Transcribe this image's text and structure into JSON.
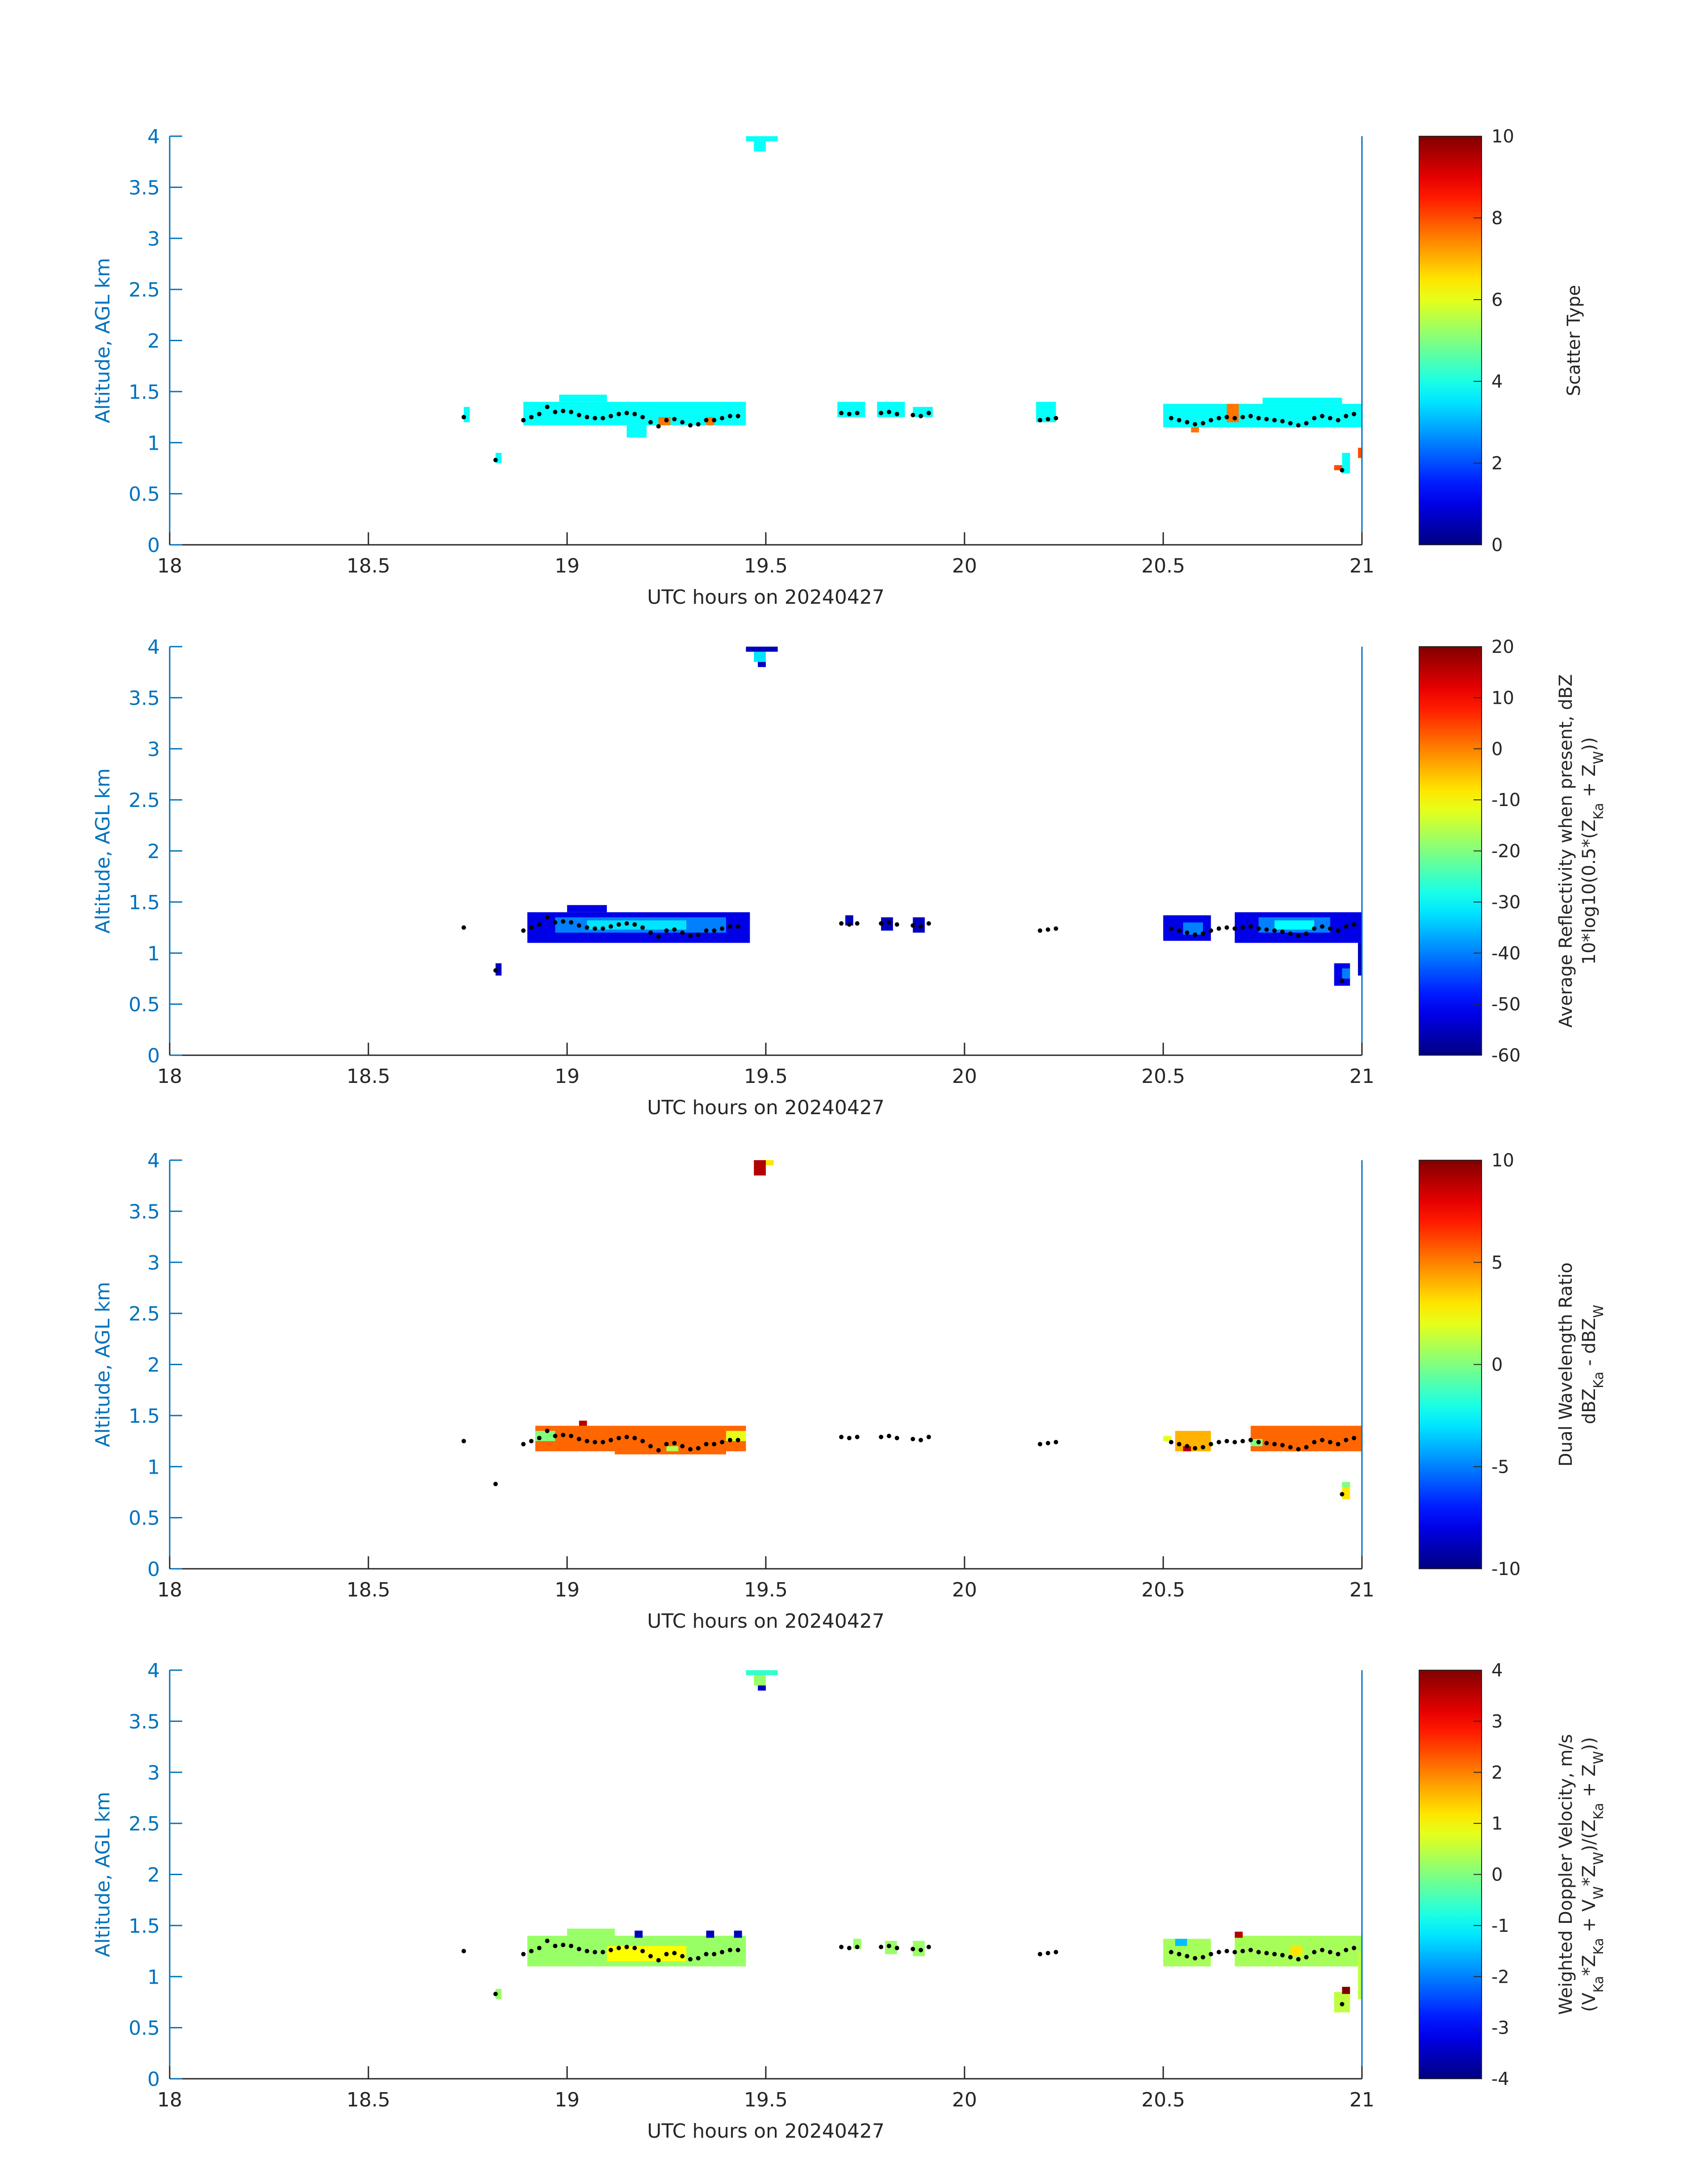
{
  "figure": {
    "background": "#ffffff"
  },
  "chart_data": [
    {
      "type": "heatmap",
      "title": "",
      "xlabel": "UTC hours on 20240427",
      "ylabel": "Altitude, AGL km",
      "xlim": [
        18,
        21
      ],
      "ylim": [
        0,
        4
      ],
      "xticks": [
        "18",
        "18.5",
        "19",
        "19.5",
        "20",
        "20.5",
        "21"
      ],
      "yticks": [
        "0",
        "0.5",
        "1",
        "1.5",
        "2",
        "2.5",
        "3",
        "3.5",
        "4"
      ],
      "colorbar": {
        "label_lines": [
          "Scatter Type"
        ],
        "min": 0,
        "max": 10,
        "ticks": [
          "0",
          "2",
          "4",
          "6",
          "8",
          "10"
        ]
      },
      "cells": [
        {
          "x0": 19.45,
          "x1": 19.53,
          "y0": 3.95,
          "y1": 4.0,
          "value": 3.8
        },
        {
          "x0": 19.47,
          "x1": 19.5,
          "y0": 3.85,
          "y1": 3.95,
          "value": 3.8
        },
        {
          "x0": 18.74,
          "x1": 18.755,
          "y0": 1.2,
          "y1": 1.35,
          "value": 3.8
        },
        {
          "x0": 18.82,
          "x1": 18.835,
          "y0": 0.8,
          "y1": 0.9,
          "value": 3.8
        },
        {
          "x0": 18.89,
          "x1": 19.45,
          "y0": 1.17,
          "y1": 1.4,
          "value": 3.8
        },
        {
          "x0": 18.98,
          "x1": 19.1,
          "y0": 1.4,
          "y1": 1.47,
          "value": 3.8
        },
        {
          "x0": 19.15,
          "x1": 19.2,
          "y0": 1.05,
          "y1": 1.17,
          "value": 3.8
        },
        {
          "x0": 19.23,
          "x1": 19.26,
          "y0": 1.17,
          "y1": 1.25,
          "value": 7.6
        },
        {
          "x0": 19.35,
          "x1": 19.37,
          "y0": 1.17,
          "y1": 1.25,
          "value": 7.6
        },
        {
          "x0": 19.68,
          "x1": 19.75,
          "y0": 1.25,
          "y1": 1.4,
          "value": 3.8
        },
        {
          "x0": 19.78,
          "x1": 19.85,
          "y0": 1.25,
          "y1": 1.4,
          "value": 3.8
        },
        {
          "x0": 19.87,
          "x1": 19.92,
          "y0": 1.25,
          "y1": 1.35,
          "value": 3.8
        },
        {
          "x0": 20.18,
          "x1": 20.23,
          "y0": 1.2,
          "y1": 1.4,
          "value": 3.8
        },
        {
          "x0": 20.5,
          "x1": 21.0,
          "y0": 1.15,
          "y1": 1.38,
          "value": 3.8
        },
        {
          "x0": 20.75,
          "x1": 20.95,
          "y0": 1.38,
          "y1": 1.44,
          "value": 3.8
        },
        {
          "x0": 20.66,
          "x1": 20.69,
          "y0": 1.2,
          "y1": 1.38,
          "value": 7.6
        },
        {
          "x0": 20.57,
          "x1": 20.59,
          "y0": 1.1,
          "y1": 1.15,
          "value": 7.6
        },
        {
          "x0": 20.95,
          "x1": 20.97,
          "y0": 0.7,
          "y1": 0.9,
          "value": 3.8
        },
        {
          "x0": 20.93,
          "x1": 20.95,
          "y0": 0.73,
          "y1": 0.78,
          "value": 8.0
        },
        {
          "x0": 20.99,
          "x1": 21.0,
          "y0": 0.85,
          "y1": 0.95,
          "value": 8.0
        }
      ]
    },
    {
      "type": "heatmap",
      "title": "",
      "xlabel": "UTC hours on 20240427",
      "ylabel": "Altitude, AGL km",
      "xlim": [
        18,
        21
      ],
      "ylim": [
        0,
        4
      ],
      "xticks": [
        "18",
        "18.5",
        "19",
        "19.5",
        "20",
        "20.5",
        "21"
      ],
      "yticks": [
        "0",
        "0.5",
        "1",
        "1.5",
        "2",
        "2.5",
        "3",
        "3.5",
        "4"
      ],
      "colorbar": {
        "label_lines": [
          "Average Reflectivity when present, dBZ",
          "10*log10(0.5*(Z",
          "Ka",
          " + Z",
          "W",
          "))"
        ],
        "min": -60,
        "max": 20,
        "ticks": [
          "-60",
          "-50",
          "-40",
          "-30",
          "-20",
          "-10",
          "0",
          "10",
          "20"
        ]
      },
      "cells": [
        {
          "x0": 19.45,
          "x1": 19.53,
          "y0": 3.95,
          "y1": 4.0,
          "value": -55
        },
        {
          "x0": 19.47,
          "x1": 19.5,
          "y0": 3.85,
          "y1": 3.95,
          "value": -32
        },
        {
          "x0": 19.48,
          "x1": 19.5,
          "y0": 3.8,
          "y1": 3.85,
          "value": -55
        },
        {
          "x0": 18.82,
          "x1": 18.835,
          "y0": 0.78,
          "y1": 0.9,
          "value": -55
        },
        {
          "x0": 18.9,
          "x1": 19.46,
          "y0": 1.1,
          "y1": 1.4,
          "value": -52
        },
        {
          "x0": 19.0,
          "x1": 19.1,
          "y0": 1.4,
          "y1": 1.47,
          "value": -52
        },
        {
          "x0": 18.97,
          "x1": 19.4,
          "y0": 1.2,
          "y1": 1.35,
          "value": -40
        },
        {
          "x0": 19.05,
          "x1": 19.3,
          "y0": 1.23,
          "y1": 1.32,
          "value": -32
        },
        {
          "x0": 19.7,
          "x1": 19.72,
          "y0": 1.27,
          "y1": 1.37,
          "value": -55
        },
        {
          "x0": 19.79,
          "x1": 19.82,
          "y0": 1.22,
          "y1": 1.35,
          "value": -55
        },
        {
          "x0": 19.87,
          "x1": 19.9,
          "y0": 1.2,
          "y1": 1.35,
          "value": -55
        },
        {
          "x0": 20.5,
          "x1": 20.62,
          "y0": 1.12,
          "y1": 1.37,
          "value": -52
        },
        {
          "x0": 20.55,
          "x1": 20.6,
          "y0": 1.18,
          "y1": 1.3,
          "value": -40
        },
        {
          "x0": 20.68,
          "x1": 21.0,
          "y0": 1.1,
          "y1": 1.4,
          "value": -52
        },
        {
          "x0": 20.74,
          "x1": 20.92,
          "y0": 1.2,
          "y1": 1.35,
          "value": -40
        },
        {
          "x0": 20.78,
          "x1": 20.88,
          "y0": 1.23,
          "y1": 1.32,
          "value": -30
        },
        {
          "x0": 20.93,
          "x1": 20.97,
          "y0": 0.68,
          "y1": 0.9,
          "value": -52
        },
        {
          "x0": 20.95,
          "x1": 20.97,
          "y0": 0.75,
          "y1": 0.85,
          "value": -40
        },
        {
          "x0": 20.99,
          "x1": 21.0,
          "y0": 0.78,
          "y1": 1.1,
          "value": -55
        }
      ]
    },
    {
      "type": "heatmap",
      "title": "",
      "xlabel": "UTC hours on 20240427",
      "ylabel": "Altitude, AGL km",
      "xlim": [
        18,
        21
      ],
      "ylim": [
        0,
        4
      ],
      "xticks": [
        "18",
        "18.5",
        "19",
        "19.5",
        "20",
        "20.5",
        "21"
      ],
      "yticks": [
        "0",
        "0.5",
        "1",
        "1.5",
        "2",
        "2.5",
        "3",
        "3.5",
        "4"
      ],
      "colorbar": {
        "label_lines": [
          "Dual Wavelength Ratio",
          "dBZ",
          "Ka",
          " - dBZ",
          "W",
          ""
        ],
        "min": -10,
        "max": 10,
        "ticks": [
          "-10",
          "-5",
          "0",
          "5",
          "10"
        ]
      },
      "cells": [
        {
          "x0": 19.47,
          "x1": 19.5,
          "y0": 3.85,
          "y1": 4.0,
          "value": 9
        },
        {
          "x0": 19.5,
          "x1": 19.52,
          "y0": 3.95,
          "y1": 4.0,
          "value": 3
        },
        {
          "x0": 18.92,
          "x1": 19.45,
          "y0": 1.15,
          "y1": 1.4,
          "value": 5.5
        },
        {
          "x0": 18.92,
          "x1": 18.97,
          "y0": 1.25,
          "y1": 1.35,
          "value": 0
        },
        {
          "x0": 19.12,
          "x1": 19.4,
          "y0": 1.12,
          "y1": 1.32,
          "value": 5.5
        },
        {
          "x0": 19.25,
          "x1": 19.28,
          "y0": 1.15,
          "y1": 1.2,
          "value": 1
        },
        {
          "x0": 19.4,
          "x1": 19.45,
          "y0": 1.25,
          "y1": 1.35,
          "value": 2
        },
        {
          "x0": 19.03,
          "x1": 19.05,
          "y0": 1.4,
          "y1": 1.45,
          "value": 9
        },
        {
          "x0": 20.5,
          "x1": 20.52,
          "y0": 1.25,
          "y1": 1.3,
          "value": 2
        },
        {
          "x0": 20.53,
          "x1": 20.62,
          "y0": 1.15,
          "y1": 1.35,
          "value": 4
        },
        {
          "x0": 20.55,
          "x1": 20.57,
          "y0": 1.15,
          "y1": 1.2,
          "value": 9
        },
        {
          "x0": 20.72,
          "x1": 21.0,
          "y0": 1.15,
          "y1": 1.4,
          "value": 5.5
        },
        {
          "x0": 20.72,
          "x1": 20.75,
          "y0": 1.2,
          "y1": 1.27,
          "value": 0
        },
        {
          "x0": 20.95,
          "x1": 20.97,
          "y0": 0.68,
          "y1": 0.85,
          "value": 3
        },
        {
          "x0": 20.95,
          "x1": 20.97,
          "y0": 0.8,
          "y1": 0.85,
          "value": 0
        }
      ]
    },
    {
      "type": "heatmap",
      "title": "",
      "xlabel": "UTC hours on 20240427",
      "ylabel": "Altitude, AGL km",
      "xlim": [
        18,
        21
      ],
      "ylim": [
        0,
        4
      ],
      "xticks": [
        "18",
        "18.5",
        "19",
        "19.5",
        "20",
        "20.5",
        "21"
      ],
      "yticks": [
        "0",
        "0.5",
        "1",
        "1.5",
        "2",
        "2.5",
        "3",
        "3.5",
        "4"
      ],
      "colorbar": {
        "label_lines": [
          "Weighted Doppler Velocity, m/s",
          "(V",
          "Ka",
          "*Z",
          "Ka",
          " + V",
          "W",
          "*Z",
          "W",
          ")/(Z",
          "Ka",
          " + Z",
          "W",
          "))"
        ],
        "min": -4,
        "max": 4,
        "ticks": [
          "-4",
          "-3",
          "-2",
          "-1",
          "0",
          "1",
          "2",
          "3",
          "4"
        ]
      },
      "cells": [
        {
          "x0": 19.45,
          "x1": 19.53,
          "y0": 3.95,
          "y1": 4.0,
          "value": -0.6
        },
        {
          "x0": 19.47,
          "x1": 19.5,
          "y0": 3.85,
          "y1": 3.95,
          "value": 0.2
        },
        {
          "x0": 19.48,
          "x1": 19.5,
          "y0": 3.8,
          "y1": 3.85,
          "value": -3.5
        },
        {
          "x0": 18.82,
          "x1": 18.835,
          "y0": 0.78,
          "y1": 0.88,
          "value": 0.2
        },
        {
          "x0": 18.9,
          "x1": 19.45,
          "y0": 1.1,
          "y1": 1.4,
          "value": 0.2
        },
        {
          "x0": 19.0,
          "x1": 19.12,
          "y0": 1.4,
          "y1": 1.47,
          "value": 0.2
        },
        {
          "x0": 19.1,
          "x1": 19.3,
          "y0": 1.15,
          "y1": 1.3,
          "value": 1.0
        },
        {
          "x0": 19.17,
          "x1": 19.19,
          "y0": 1.38,
          "y1": 1.45,
          "value": -3.5
        },
        {
          "x0": 19.35,
          "x1": 19.37,
          "y0": 1.38,
          "y1": 1.45,
          "value": -3.5
        },
        {
          "x0": 19.42,
          "x1": 19.44,
          "y0": 1.38,
          "y1": 1.45,
          "value": -3.5
        },
        {
          "x0": 19.72,
          "x1": 19.74,
          "y0": 1.27,
          "y1": 1.37,
          "value": 0.2
        },
        {
          "x0": 19.8,
          "x1": 19.83,
          "y0": 1.22,
          "y1": 1.35,
          "value": 0.2
        },
        {
          "x0": 19.87,
          "x1": 19.9,
          "y0": 1.2,
          "y1": 1.35,
          "value": 0.2
        },
        {
          "x0": 20.5,
          "x1": 20.62,
          "y0": 1.1,
          "y1": 1.37,
          "value": 0.3
        },
        {
          "x0": 20.53,
          "x1": 20.56,
          "y0": 1.3,
          "y1": 1.37,
          "value": -1.5
        },
        {
          "x0": 20.68,
          "x1": 21.0,
          "y0": 1.1,
          "y1": 1.4,
          "value": 0.3
        },
        {
          "x0": 20.68,
          "x1": 20.7,
          "y0": 1.38,
          "y1": 1.44,
          "value": 3.6
        },
        {
          "x0": 20.82,
          "x1": 20.85,
          "y0": 1.2,
          "y1": 1.3,
          "value": 1.2
        },
        {
          "x0": 20.93,
          "x1": 20.97,
          "y0": 0.65,
          "y1": 0.85,
          "value": 0.5
        },
        {
          "x0": 20.95,
          "x1": 20.97,
          "y0": 0.83,
          "y1": 0.9,
          "value": 4
        },
        {
          "x0": 20.99,
          "x1": 21.0,
          "y0": 0.78,
          "y1": 1.25,
          "value": 0.5
        }
      ]
    }
  ],
  "cloud_base_dots": {
    "color": "#000000",
    "points": [
      [
        18.74,
        1.25
      ],
      [
        18.82,
        0.83
      ],
      [
        18.89,
        1.22
      ],
      [
        18.91,
        1.25
      ],
      [
        18.93,
        1.28
      ],
      [
        18.95,
        1.35
      ],
      [
        18.97,
        1.3
      ],
      [
        18.99,
        1.31
      ],
      [
        19.01,
        1.3
      ],
      [
        19.03,
        1.27
      ],
      [
        19.05,
        1.25
      ],
      [
        19.07,
        1.24
      ],
      [
        19.09,
        1.24
      ],
      [
        19.11,
        1.26
      ],
      [
        19.13,
        1.28
      ],
      [
        19.15,
        1.29
      ],
      [
        19.17,
        1.28
      ],
      [
        19.19,
        1.25
      ],
      [
        19.21,
        1.2
      ],
      [
        19.23,
        1.16
      ],
      [
        19.25,
        1.22
      ],
      [
        19.27,
        1.23
      ],
      [
        19.29,
        1.2
      ],
      [
        19.31,
        1.17
      ],
      [
        19.33,
        1.18
      ],
      [
        19.35,
        1.22
      ],
      [
        19.37,
        1.22
      ],
      [
        19.39,
        1.24
      ],
      [
        19.41,
        1.26
      ],
      [
        19.43,
        1.26
      ],
      [
        19.69,
        1.29
      ],
      [
        19.71,
        1.28
      ],
      [
        19.73,
        1.29
      ],
      [
        19.79,
        1.29
      ],
      [
        19.81,
        1.3
      ],
      [
        19.83,
        1.28
      ],
      [
        19.87,
        1.27
      ],
      [
        19.89,
        1.26
      ],
      [
        19.91,
        1.29
      ],
      [
        20.19,
        1.22
      ],
      [
        20.21,
        1.23
      ],
      [
        20.23,
        1.24
      ],
      [
        20.52,
        1.24
      ],
      [
        20.54,
        1.22
      ],
      [
        20.56,
        1.2
      ],
      [
        20.58,
        1.18
      ],
      [
        20.6,
        1.19
      ],
      [
        20.62,
        1.22
      ],
      [
        20.64,
        1.24
      ],
      [
        20.66,
        1.25
      ],
      [
        20.68,
        1.24
      ],
      [
        20.7,
        1.25
      ],
      [
        20.72,
        1.26
      ],
      [
        20.74,
        1.24
      ],
      [
        20.76,
        1.23
      ],
      [
        20.78,
        1.22
      ],
      [
        20.8,
        1.21
      ],
      [
        20.82,
        1.19
      ],
      [
        20.84,
        1.17
      ],
      [
        20.86,
        1.19
      ],
      [
        20.88,
        1.24
      ],
      [
        20.9,
        1.26
      ],
      [
        20.92,
        1.24
      ],
      [
        20.94,
        1.22
      ],
      [
        20.96,
        1.26
      ],
      [
        20.98,
        1.28
      ],
      [
        20.95,
        0.73
      ]
    ]
  }
}
